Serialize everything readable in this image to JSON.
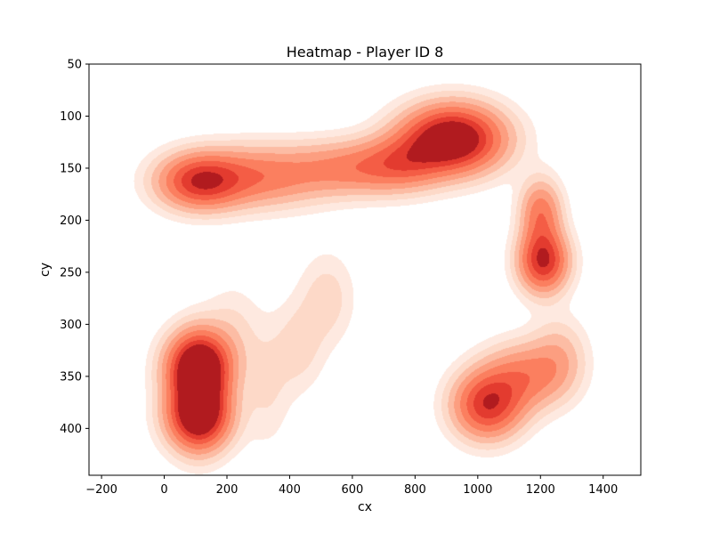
{
  "chart_data": {
    "type": "heatmap",
    "title": "Heatmap - Player ID 8",
    "xlabel": "cx",
    "ylabel": "cy",
    "xlim": [
      -240,
      1520
    ],
    "ylim": [
      445,
      50
    ],
    "y_inverted": true,
    "x_ticks": [
      -200,
      0,
      200,
      400,
      600,
      800,
      1000,
      1200,
      1400
    ],
    "y_ticks": [
      50,
      100,
      150,
      200,
      250,
      300,
      350,
      400
    ],
    "grid": false,
    "colormap": "Reds",
    "level_colors": [
      "#fee9e0",
      "#fdd9c8",
      "#fcbca4",
      "#fc9e80",
      "#fb7f5f",
      "#f45d45",
      "#e33b2f",
      "#b11b1f"
    ],
    "kernels": [
      {
        "cx": 110,
        "cy": 340,
        "sx": 70,
        "sy": 22,
        "w": 1.0
      },
      {
        "cx": 110,
        "cy": 388,
        "sx": 70,
        "sy": 22,
        "w": 0.95
      },
      {
        "cx": 110,
        "cy": 362,
        "sx": 55,
        "sy": 35,
        "w": 0.35
      },
      {
        "cx": 220,
        "cy": 305,
        "sx": 60,
        "sy": 30,
        "w": 0.12
      },
      {
        "cx": 330,
        "cy": 360,
        "sx": 50,
        "sy": 40,
        "w": 0.12
      },
      {
        "cx": 430,
        "cy": 322,
        "sx": 55,
        "sy": 30,
        "w": 0.15
      },
      {
        "cx": 520,
        "cy": 275,
        "sx": 60,
        "sy": 30,
        "w": 0.16
      },
      {
        "cx": 110,
        "cy": 163,
        "sx": 90,
        "sy": 18,
        "w": 0.72
      },
      {
        "cx": 300,
        "cy": 158,
        "sx": 140,
        "sy": 20,
        "w": 0.48
      },
      {
        "cx": 600,
        "cy": 150,
        "sx": 130,
        "sy": 18,
        "w": 0.42
      },
      {
        "cx": 920,
        "cy": 122,
        "sx": 110,
        "sy": 22,
        "w": 1.12
      },
      {
        "cx": 760,
        "cy": 145,
        "sx": 90,
        "sy": 18,
        "w": 0.38
      },
      {
        "cx": 1210,
        "cy": 240,
        "sx": 55,
        "sy": 20,
        "w": 0.75
      },
      {
        "cx": 1200,
        "cy": 190,
        "sx": 45,
        "sy": 20,
        "w": 0.35
      },
      {
        "cx": 1205,
        "cy": 212,
        "sx": 45,
        "sy": 30,
        "w": 0.2
      },
      {
        "cx": 1030,
        "cy": 378,
        "sx": 75,
        "sy": 22,
        "w": 0.78
      },
      {
        "cx": 1150,
        "cy": 350,
        "sx": 90,
        "sy": 22,
        "w": 0.45
      },
      {
        "cx": 1260,
        "cy": 330,
        "sx": 60,
        "sy": 25,
        "w": 0.22
      }
    ],
    "hotspots": [
      {
        "cx": 920,
        "cy": 122
      },
      {
        "cx": 110,
        "cy": 340
      },
      {
        "cx": 110,
        "cy": 388
      },
      {
        "cx": 1030,
        "cy": 378
      },
      {
        "cx": 1210,
        "cy": 240
      },
      {
        "cx": 110,
        "cy": 163
      }
    ]
  }
}
